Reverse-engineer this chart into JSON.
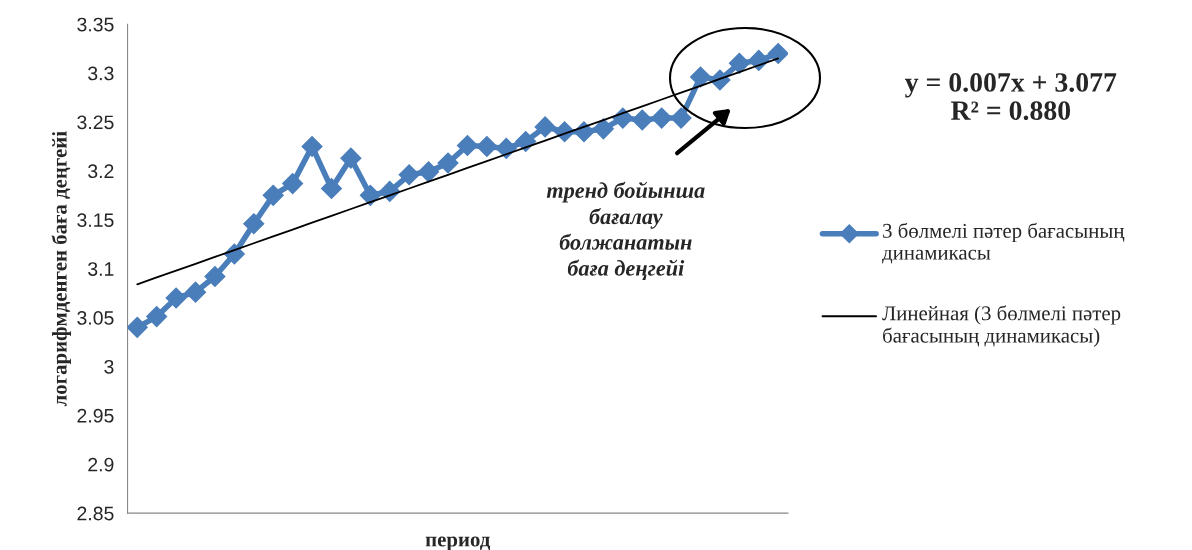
{
  "chart_data": {
    "type": "line",
    "categories": [
      null,
      null,
      null,
      null,
      null,
      null,
      null,
      null,
      null,
      null,
      null,
      null,
      null,
      null,
      null,
      null,
      null,
      null,
      null,
      null,
      null,
      null,
      null,
      null,
      null,
      null,
      null,
      null,
      null,
      null,
      null,
      null,
      null,
      null
    ],
    "ylabel": "логарифмденген баға деңгейі",
    "xlabel": "период",
    "ylim": [
      2.85,
      3.35
    ],
    "yticks": [
      2.85,
      2.9,
      2.95,
      3,
      3.05,
      3.1,
      3.15,
      3.2,
      3.25,
      3.3,
      3.35
    ],
    "grid": false,
    "legend": "right",
    "series": [
      {
        "name": "3 бөлмелі пәтер бағасының динамикасы",
        "color": "#4a7ebb",
        "marker": "diamond",
        "values": [
          3.04,
          3.051,
          3.07,
          3.076,
          3.092,
          3.115,
          3.146,
          3.175,
          3.187,
          3.225,
          3.182,
          3.213,
          3.175,
          3.179,
          3.196,
          3.199,
          3.208,
          3.226,
          3.225,
          3.223,
          3.23,
          3.245,
          3.24,
          3.24,
          3.243,
          3.254,
          3.252,
          3.254,
          3.254,
          3.296,
          3.293,
          3.31,
          3.313,
          3.32
        ]
      },
      {
        "name": "Линейная (3 бөлмелі пәтер бағасының динамикасы)",
        "color": "#000000",
        "marker": "none",
        "values": [
          3.084,
          3.091,
          3.098,
          3.105,
          3.112,
          3.119,
          3.126,
          3.133,
          3.14,
          3.147,
          3.154,
          3.161,
          3.168,
          3.175,
          3.182,
          3.189,
          3.196,
          3.203,
          3.21,
          3.217,
          3.224,
          3.231,
          3.238,
          3.245,
          3.252,
          3.259,
          3.266,
          3.273,
          3.28,
          3.287,
          3.294,
          3.301,
          3.308,
          3.315
        ]
      }
    ],
    "annotations": [
      "y = 0.007x + 3.077\nR² = 0.880",
      "тренд бойынша\nбағалау\nболжанатын\nбаға деңгейі"
    ]
  }
}
